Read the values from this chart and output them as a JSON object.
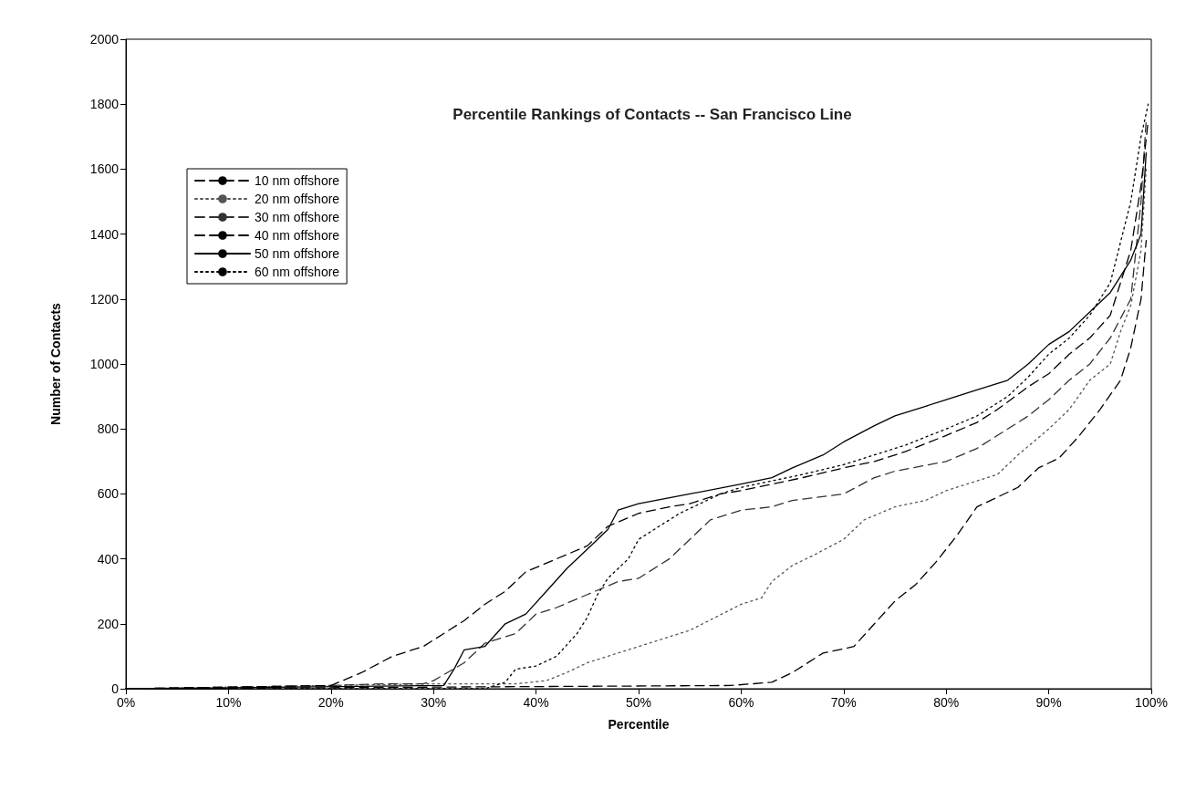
{
  "chart_data": {
    "type": "line",
    "title": "Percentile Rankings of Contacts -- San Francisco Line",
    "xlabel": "Percentile",
    "ylabel": "Number of Contacts",
    "xlim": [
      0,
      100
    ],
    "xticks": [
      {
        "value": 0,
        "label": "0%"
      },
      {
        "value": 10,
        "label": "10%"
      },
      {
        "value": 20,
        "label": "20%"
      },
      {
        "value": 30,
        "label": "30%"
      },
      {
        "value": 40,
        "label": "40%"
      },
      {
        "value": 50,
        "label": "50%"
      },
      {
        "value": 60,
        "label": "60%"
      },
      {
        "value": 70,
        "label": "70%"
      },
      {
        "value": 80,
        "label": "80%"
      },
      {
        "value": 90,
        "label": "90%"
      },
      {
        "value": 100,
        "label": "100%"
      }
    ],
    "ylim": [
      0,
      2000
    ],
    "yticks": [
      0,
      200,
      400,
      600,
      800,
      1000,
      1200,
      1400,
      1600,
      1800,
      2000
    ],
    "grid": false,
    "legend": "top left",
    "marker": "none",
    "series": [
      {
        "name": "10 nm offshore",
        "color": "#000000",
        "line_style": "dashed",
        "x": [
          0,
          59,
          63,
          65,
          68,
          71,
          73,
          75,
          77,
          79,
          81,
          83,
          85,
          87,
          89,
          91,
          93,
          95,
          97,
          98,
          99,
          99.5
        ],
        "values": [
          0,
          10,
          20,
          50,
          110,
          130,
          200,
          270,
          320,
          390,
          470,
          560,
          590,
          620,
          680,
          710,
          780,
          860,
          950,
          1050,
          1200,
          1380
        ]
      },
      {
        "name": "20 nm offshore",
        "color": "#555555",
        "line_style": "dotted",
        "x": [
          0,
          20,
          30,
          38,
          41,
          43,
          45,
          50,
          55,
          60,
          62,
          63,
          65,
          67,
          70,
          72,
          75,
          78,
          80,
          83,
          85,
          87,
          90,
          92,
          94,
          96,
          97,
          98,
          99,
          99.5
        ],
        "values": [
          0,
          10,
          15,
          15,
          25,
          50,
          80,
          130,
          180,
          260,
          280,
          330,
          380,
          410,
          460,
          520,
          560,
          580,
          610,
          640,
          660,
          720,
          800,
          860,
          950,
          1000,
          1100,
          1180,
          1350,
          1600
        ]
      },
      {
        "name": "30 nm offshore",
        "color": "#333333",
        "line_style": "dashed",
        "x": [
          0,
          20,
          25,
          29,
          30,
          33,
          35,
          38,
          40,
          42,
          45,
          48,
          50,
          53,
          55,
          57,
          60,
          63,
          65,
          70,
          73,
          75,
          80,
          83,
          85,
          88,
          90,
          92,
          94,
          96,
          98,
          99,
          99.5
        ],
        "values": [
          0,
          10,
          15,
          15,
          25,
          80,
          140,
          170,
          230,
          250,
          290,
          330,
          340,
          400,
          460,
          520,
          550,
          560,
          580,
          600,
          650,
          670,
          700,
          740,
          780,
          840,
          890,
          950,
          1000,
          1080,
          1200,
          1500,
          1750
        ]
      },
      {
        "name": "40 nm offshore",
        "color": "#000000",
        "line_style": "dashed",
        "x": [
          0,
          20,
          23,
          26,
          29,
          31,
          33,
          35,
          37,
          39,
          42,
          45,
          47,
          50,
          53,
          55,
          58,
          60,
          63,
          66,
          70,
          73,
          76,
          80,
          83,
          85,
          88,
          90,
          92,
          94,
          96,
          98,
          99,
          99.7
        ],
        "values": [
          0,
          10,
          50,
          100,
          130,
          170,
          210,
          260,
          300,
          360,
          400,
          440,
          500,
          540,
          560,
          570,
          600,
          610,
          630,
          650,
          680,
          700,
          730,
          780,
          820,
          860,
          930,
          970,
          1030,
          1080,
          1150,
          1350,
          1550,
          1750
        ]
      },
      {
        "name": "50 nm offshore",
        "color": "#000000",
        "line_style": "solid",
        "x": [
          0,
          31,
          32,
          33,
          35,
          37,
          39,
          41,
          43,
          45,
          47,
          48,
          50,
          55,
          60,
          63,
          65,
          68,
          70,
          73,
          75,
          78,
          80,
          83,
          86,
          88,
          90,
          92,
          94,
          96,
          98,
          99,
          99.5
        ],
        "values": [
          0,
          10,
          60,
          120,
          130,
          200,
          230,
          300,
          370,
          430,
          490,
          550,
          570,
          600,
          630,
          650,
          680,
          720,
          760,
          810,
          840,
          870,
          890,
          920,
          950,
          1000,
          1060,
          1100,
          1160,
          1220,
          1320,
          1400,
          1650
        ]
      },
      {
        "name": "60 nm offshore",
        "color": "#000000",
        "line_style": "dotted",
        "x": [
          0,
          35,
          37,
          38,
          40,
          42,
          44,
          45,
          46,
          47,
          49,
          50,
          52,
          54,
          56,
          58,
          60,
          63,
          66,
          70,
          73,
          76,
          80,
          83,
          86,
          88,
          90,
          92,
          94,
          96,
          98,
          99,
          99.7
        ],
        "values": [
          0,
          0,
          20,
          60,
          70,
          100,
          170,
          220,
          290,
          340,
          400,
          460,
          500,
          540,
          570,
          600,
          620,
          640,
          660,
          690,
          720,
          750,
          800,
          840,
          900,
          960,
          1030,
          1080,
          1150,
          1250,
          1500,
          1700,
          1800
        ]
      }
    ]
  }
}
